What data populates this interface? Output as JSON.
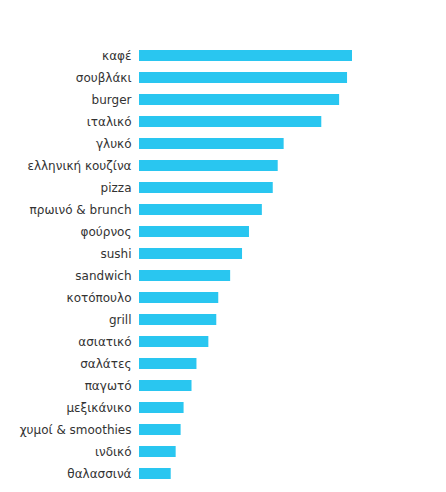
{
  "chart_data": {
    "type": "bar",
    "orientation": "horizontal",
    "tick_labels": "y",
    "categories": [
      "καφέ",
      "σουβλάκι",
      "burger",
      "ιταλικό",
      "γλυκό",
      "ελληνική κουζίνα",
      "pizza",
      "πρωινό & brunch",
      "φούρνος",
      "sushi",
      "sandwich",
      "κοτόπουλο",
      "grill",
      "ασιατικό",
      "σαλάτες",
      "παγωτό",
      "μεξικάνικο",
      "χυμοί & smoothies",
      "ινδικό",
      "θαλασσινά"
    ],
    "values": [
      215,
      210,
      202,
      184,
      146,
      140,
      135,
      124,
      111,
      104,
      92,
      80,
      78,
      70,
      58,
      53,
      45,
      42,
      37,
      32
    ],
    "color": "#29c6f0",
    "xlim": [
      0,
      215
    ]
  }
}
